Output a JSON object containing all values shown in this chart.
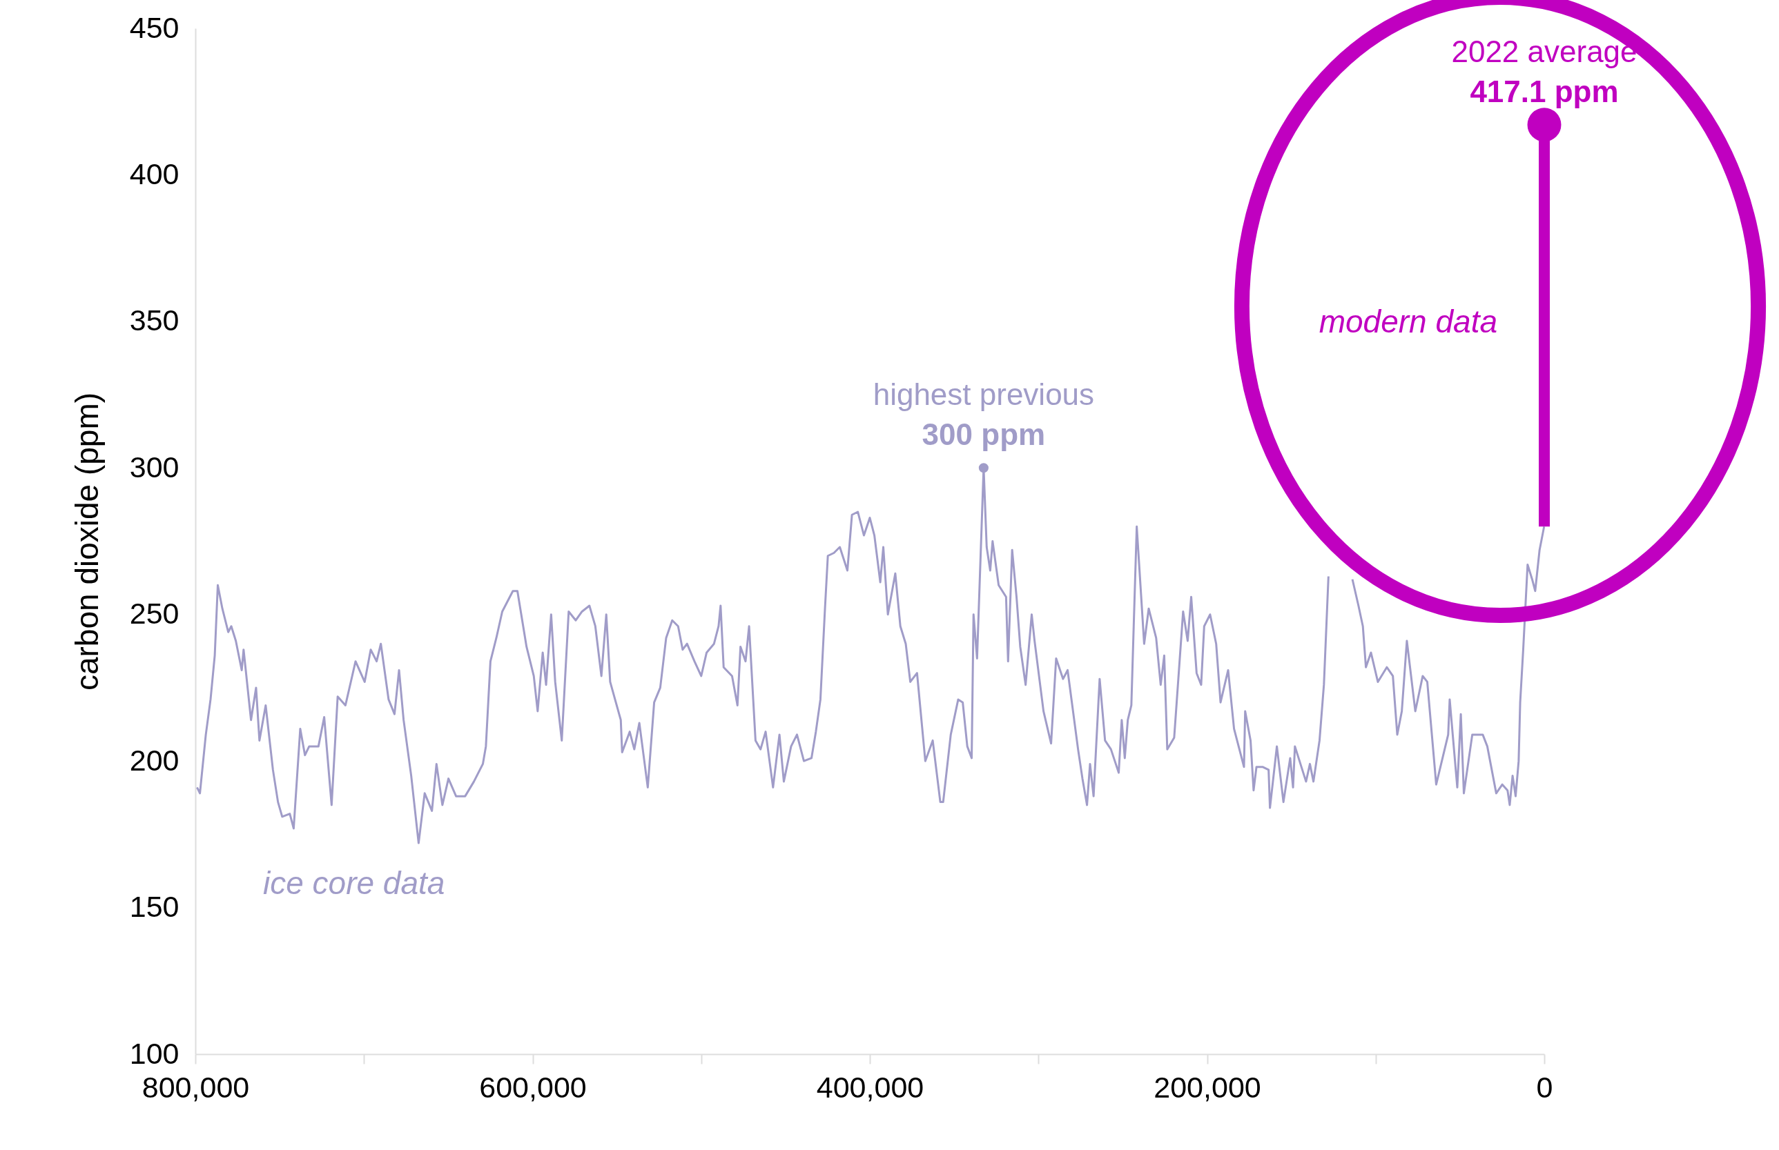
{
  "chart_data": {
    "type": "line",
    "ylabel": "carbon dioxide (ppm)",
    "xlim": [
      800000,
      0
    ],
    "xticks": [
      {
        "value": 800000,
        "label": "800,000"
      },
      {
        "value": 700000,
        "label": null
      },
      {
        "value": 600000,
        "label": "600,000"
      },
      {
        "value": 500000,
        "label": null
      },
      {
        "value": 400000,
        "label": "400,000"
      },
      {
        "value": 300000,
        "label": null
      },
      {
        "value": 200000,
        "label": "200,000"
      },
      {
        "value": 100000,
        "label": null
      },
      0
    ],
    "ylim": [
      100,
      450
    ],
    "yticks": [
      100,
      150,
      200,
      250,
      300,
      350,
      400,
      450
    ],
    "marker": "none",
    "line_style": "solid",
    "series": [
      {
        "name": "ice core data",
        "color": "#a09cc8",
        "x": [
          799000,
          797300,
          793800,
          791000,
          788500,
          786700,
          784000,
          780500,
          778700,
          776000,
          772500,
          771400,
          767000,
          764000,
          762000,
          758300,
          754000,
          751000,
          748500,
          744000,
          741700,
          737800,
          735000,
          732500,
          727000,
          723600,
          719200,
          715600,
          711000,
          705000,
          699600,
          696000,
          692500,
          690000,
          685400,
          681900,
          679200,
          676500,
          672000,
          667600,
          664000,
          659700,
          657000,
          653500,
          649900,
          645400,
          640000,
          634800,
          629500,
          627700,
          625000,
          621500,
          618000,
          611700,
          609000,
          603600,
          599300,
          597000,
          594000,
          592000,
          589000,
          586600,
          582700,
          578600,
          574400,
          570700,
          566300,
          562800,
          559200,
          556300,
          554000,
          547700,
          546900,
          542400,
          539700,
          536700,
          531700,
          527900,
          524300,
          520800,
          517200,
          513700,
          511000,
          508400,
          504000,
          500000,
          496800,
          492400,
          489700,
          488500,
          486700,
          481700,
          478500,
          476700,
          473700,
          471600,
          467800,
          464800,
          461800,
          457400,
          453600,
          451000,
          446700,
          443200,
          439100,
          434600,
          432000,
          429300,
          426600,
          424900,
          421300,
          417800,
          413300,
          410600,
          407100,
          403500,
          400000,
          397300,
          393800,
          392000,
          389300,
          384900,
          381900,
          378700,
          376000,
          372000,
          367100,
          362700,
          358200,
          356500,
          352000,
          347600,
          344900,
          342200,
          339600,
          338500,
          336400,
          332500,
          330700,
          328600,
          327200,
          323600,
          319200,
          318000,
          315600,
          313000,
          310800,
          307600,
          304000,
          302300,
          297000,
          292500,
          289500,
          285400,
          282700,
          276500,
          273900,
          271200,
          269400,
          267300,
          263700,
          260500,
          257000,
          252400,
          250600,
          248800,
          247000,
          244900,
          243500,
          241700,
          237300,
          234600,
          230200,
          227500,
          225400,
          223600,
          219500,
          214200,
          211500,
          209400,
          206200,
          203500,
          201700,
          198200,
          194600,
          192000,
          187500,
          184000,
          178100,
          177400,
          174200,
          172400,
          170700,
          167100,
          163500,
          162700,
          158600,
          154700,
          150700,
          149000,
          147900,
          141300,
          139000,
          136900,
          133300,
          130700,
          128000,
          127100,
          124500,
          120900,
          113800,
          110200,
          107600,
          105800,
          102800,
          98700,
          93400,
          89800,
          87200,
          84500,
          81500,
          76500,
          72100,
          69400,
          64100,
          57000,
          56100,
          51600,
          49500,
          47700,
          42700,
          36500,
          33800,
          28500,
          24900,
          21800,
          20500,
          18800,
          17000,
          15200,
          14300,
          12500,
          9900,
          7200,
          5400,
          2800,
          100
        ],
        "values": [
          191,
          189,
          209,
          221,
          236,
          260,
          252,
          244,
          246,
          241,
          231,
          238,
          214,
          225,
          207,
          219,
          197,
          186,
          181,
          182,
          177,
          211,
          202,
          205,
          205,
          215,
          185,
          222,
          219,
          234,
          227,
          238,
          234,
          240,
          221,
          216,
          231,
          214,
          195,
          172,
          189,
          183,
          199,
          185,
          194,
          188,
          188,
          193,
          199,
          205,
          234,
          242,
          251,
          258,
          258,
          239,
          229,
          217,
          237,
          226,
          250,
          227,
          207,
          251,
          248,
          251,
          253,
          246,
          229,
          250,
          227,
          214,
          203,
          210,
          204,
          213,
          191,
          220,
          225,
          242,
          248,
          246,
          238,
          240,
          234,
          229,
          237,
          240,
          246,
          253,
          232,
          229,
          219,
          239,
          234,
          246,
          207,
          204,
          210,
          191,
          209,
          193,
          205,
          209,
          200,
          201,
          210,
          221,
          252,
          270,
          271,
          273,
          265,
          284,
          285,
          277,
          283,
          277,
          261,
          273,
          250,
          264,
          246,
          240,
          227,
          230,
          200,
          207,
          186,
          186,
          209,
          221,
          220,
          205,
          201,
          250,
          235,
          300,
          273,
          265,
          275,
          260,
          256,
          234,
          272,
          256,
          239,
          226,
          250,
          241,
          217,
          206,
          235,
          228,
          231,
          204,
          194,
          185,
          199,
          188,
          228,
          207,
          204,
          196,
          214,
          201,
          214,
          219,
          246,
          280,
          240,
          252,
          242,
          226,
          236,
          204,
          208,
          251,
          241,
          256,
          230,
          226,
          246,
          250,
          240,
          220,
          231,
          211,
          198,
          217,
          207,
          190,
          198,
          198,
          197,
          184,
          205,
          186,
          201,
          191,
          205,
          193,
          199,
          193,
          207,
          226,
          263,
          null,
          null,
          null,
          262,
          253,
          246,
          232,
          237,
          227,
          232,
          229,
          209,
          217,
          241,
          217,
          229,
          227,
          192,
          209,
          221,
          191,
          216,
          189,
          209,
          209,
          205,
          189,
          192,
          190,
          185,
          195,
          188,
          200,
          220,
          238,
          267,
          262,
          258,
          272,
          280
        ]
      },
      {
        "name": "modern data",
        "color": "#c000c0",
        "x": [
          0,
          0
        ],
        "values": [
          280,
          417.1
        ]
      },
      {
        "type": "scatter",
        "marker": "circle",
        "color": "#a09cc8",
        "x": [
          332500
        ],
        "values": [
          300
        ]
      },
      {
        "type": "scatter",
        "marker": "circle",
        "color": "#c000c0",
        "x": [
          0
        ],
        "values": [
          417.1
        ]
      }
    ],
    "annotations": [
      {
        "text": "highest previous\n300 ppm",
        "x": 332500,
        "y": 300
      },
      {
        "text": "2022 average\n417.1 ppm",
        "x": 0,
        "y": 417.1
      }
    ]
  }
}
